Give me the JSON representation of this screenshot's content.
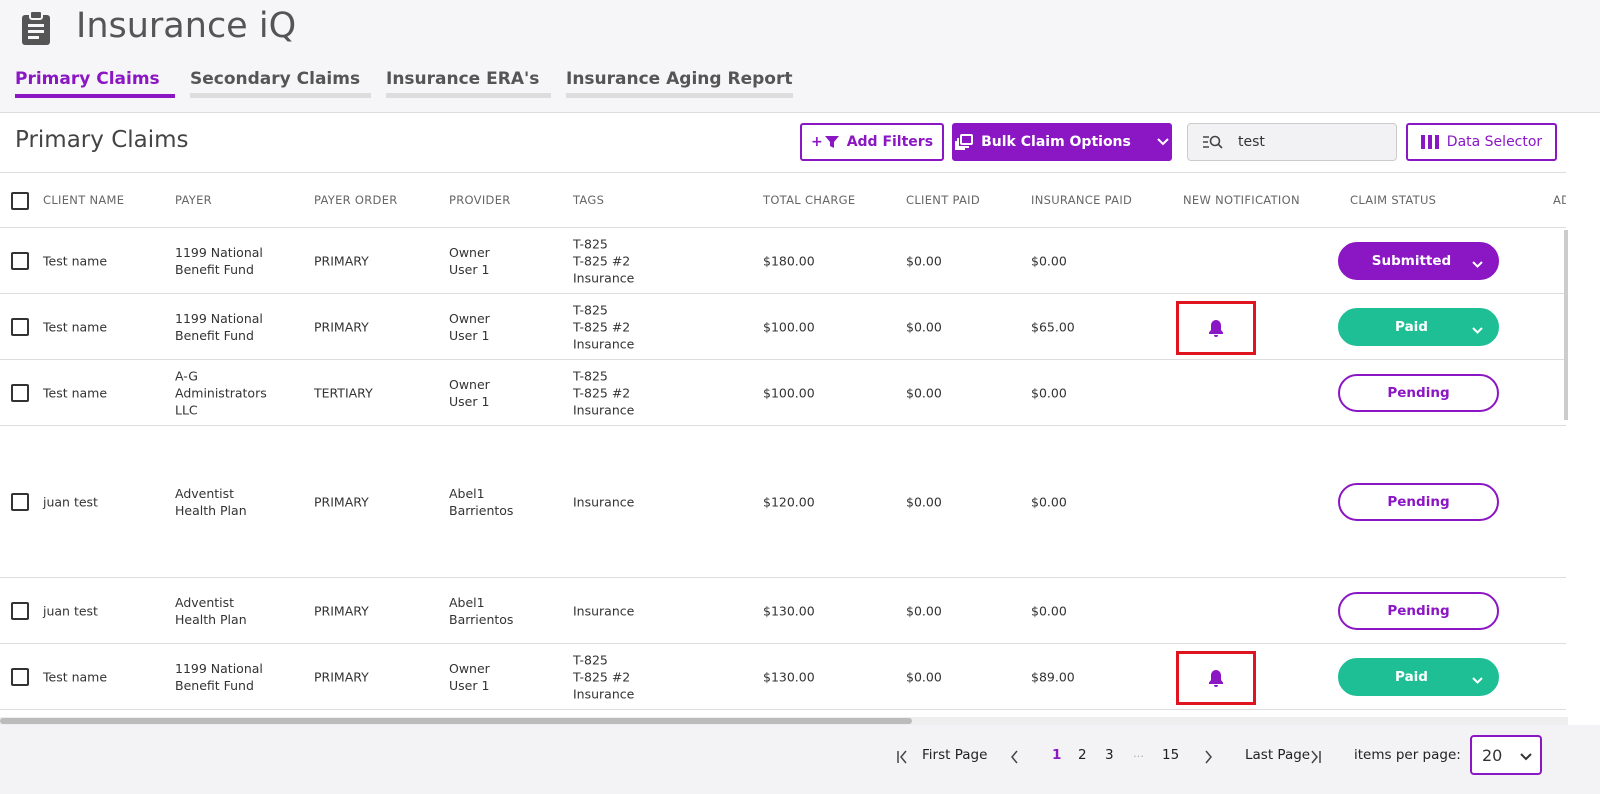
{
  "header": {
    "title": "Insurance iQ"
  },
  "tabs": [
    "Primary Claims",
    "Secondary Claims",
    "Insurance ERA's",
    "Insurance Aging Report"
  ],
  "toolbar": {
    "title": "Primary Claims",
    "add_filters_icon": "+",
    "add_filters": "Add Filters",
    "bulk": "Bulk Claim Options",
    "search": "test",
    "data_selector": "Data Selector"
  },
  "table": {
    "columns": [
      "CLIENT NAME",
      "PAYER",
      "PAYER ORDER",
      "PROVIDER",
      "TAGS",
      "TOTAL CHARGE",
      "CLIENT PAID",
      "INSURANCE PAID",
      "NEW NOTIFICATION",
      "CLAIM STATUS",
      "AD"
    ],
    "rows": [
      {
        "client": "Test name",
        "payer": [
          "1199 National",
          "Benefit Fund"
        ],
        "order": "PRIMARY",
        "provider": [
          "Owner",
          "User 1"
        ],
        "tags": [
          "T-825",
          "T-825 #2",
          "Insurance"
        ],
        "total": "$180.00",
        "client_paid": "$0.00",
        "insurance_paid": "$0.00",
        "notification": false,
        "status": "Submitted",
        "status_color": "#8b16c4",
        "status_filled": true
      },
      {
        "client": "Test name",
        "payer": [
          "1199 National",
          "Benefit Fund"
        ],
        "order": "PRIMARY",
        "provider": [
          "Owner",
          "User 1"
        ],
        "tags": [
          "T-825",
          "T-825 #2",
          "Insurance"
        ],
        "total": "$100.00",
        "client_paid": "$0.00",
        "insurance_paid": "$65.00",
        "notification": true,
        "status": "Paid",
        "status_color": "#1fbf96",
        "status_filled": true
      },
      {
        "client": "Test name",
        "payer": [
          "A-G",
          "Administrators",
          "LLC"
        ],
        "order": "TERTIARY",
        "provider": [
          "Owner",
          "User 1"
        ],
        "tags": [
          "T-825",
          "T-825 #2",
          "Insurance"
        ],
        "total": "$100.00",
        "client_paid": "$0.00",
        "insurance_paid": "$0.00",
        "notification": false,
        "status": "Pending",
        "status_color": "#8b16c4",
        "status_filled": false
      },
      {
        "client": "juan test",
        "payer": [
          "Adventist",
          "Health Plan"
        ],
        "order": "PRIMARY",
        "provider": [
          "Abel1",
          "Barrientos"
        ],
        "tags": [
          "Insurance"
        ],
        "total": "$120.00",
        "client_paid": "$0.00",
        "insurance_paid": "$0.00",
        "notification": false,
        "status": "Pending",
        "status_color": "#8b16c4",
        "status_filled": false
      },
      {
        "client": "juan test",
        "payer": [
          "Adventist",
          "Health Plan"
        ],
        "order": "PRIMARY",
        "provider": [
          "Abel1",
          "Barrientos"
        ],
        "tags": [
          "Insurance"
        ],
        "total": "$130.00",
        "client_paid": "$0.00",
        "insurance_paid": "$0.00",
        "notification": false,
        "status": "Pending",
        "status_color": "#8b16c4",
        "status_filled": false
      },
      {
        "client": "Test name",
        "payer": [
          "1199 National",
          "Benefit Fund"
        ],
        "order": "PRIMARY",
        "provider": [
          "Owner",
          "User 1"
        ],
        "tags": [
          "T-825",
          "T-825 #2",
          "Insurance"
        ],
        "total": "$130.00",
        "client_paid": "$0.00",
        "insurance_paid": "$89.00",
        "notification": true,
        "status": "Paid",
        "status_color": "#1fbf96",
        "status_filled": true
      }
    ]
  },
  "pagination": {
    "first": "First Page",
    "pages": [
      "1",
      "2",
      "3",
      "…",
      "15"
    ],
    "current": 0,
    "last": "Last Page",
    "items_label": "items per page:",
    "items": "20"
  }
}
